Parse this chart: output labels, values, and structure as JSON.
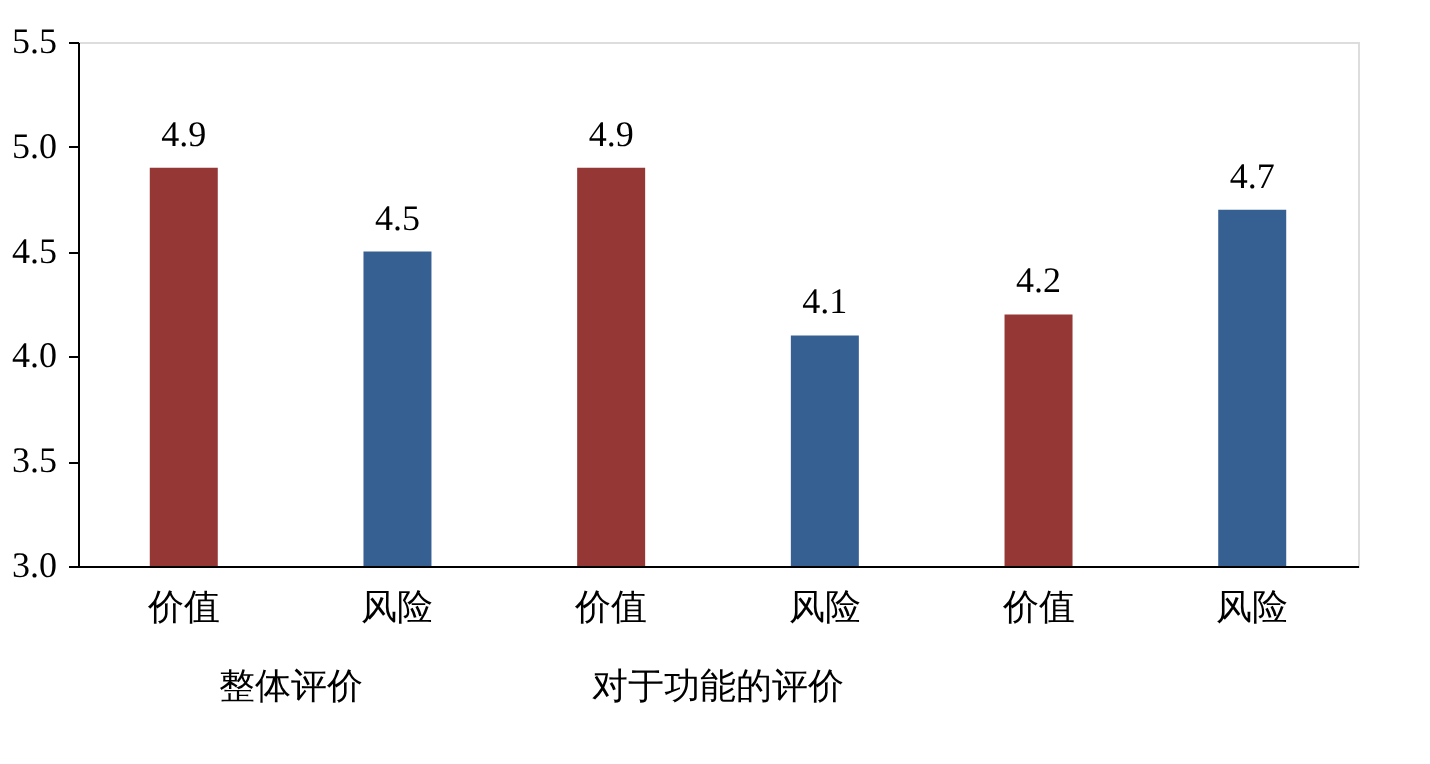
{
  "chart_data": {
    "type": "bar",
    "categories": [
      "价值",
      "风险",
      "价值",
      "风险",
      "价值",
      "风险"
    ],
    "values": [
      4.9,
      4.5,
      4.9,
      4.1,
      4.2,
      4.7
    ],
    "colors": [
      "#953735",
      "#376092",
      "#953735",
      "#376092",
      "#953735",
      "#376092"
    ],
    "ylim": [
      3.0,
      5.5
    ],
    "yticks": [
      {
        "value": 3,
        "label": "3.0"
      },
      {
        "value": 3.5,
        "label": "3.5"
      },
      {
        "value": 4,
        "label": "4.0"
      },
      {
        "value": 4.5,
        "label": "4.5"
      },
      {
        "value": 5,
        "label": "5.0"
      },
      {
        "value": 5.5,
        "label": "5.5"
      }
    ],
    "data_labels": true,
    "grid": false,
    "annotations": [
      "整体评价",
      "对于功能的评价"
    ]
  }
}
